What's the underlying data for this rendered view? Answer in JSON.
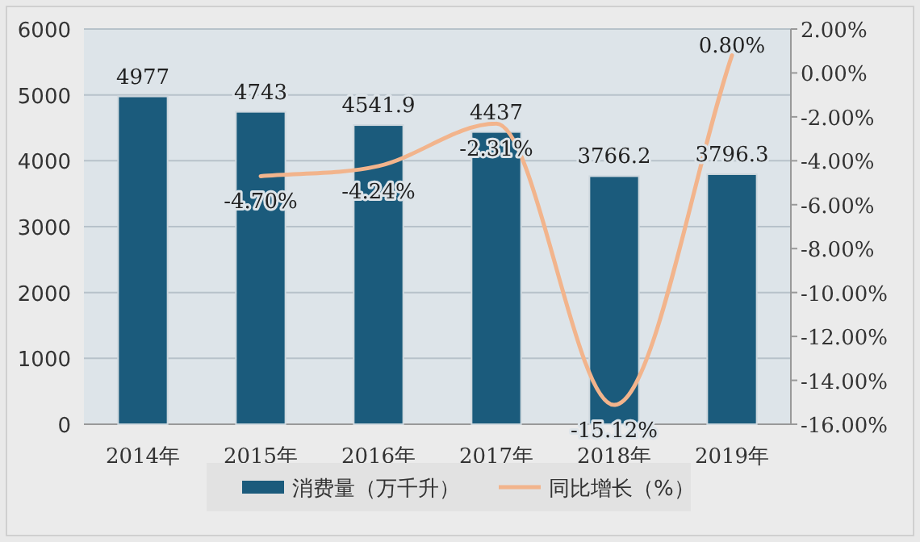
{
  "chart_data": {
    "type": "bar",
    "categories": [
      "2014年",
      "2015年",
      "2016年",
      "2017年",
      "2018年",
      "2019年"
    ],
    "series": [
      {
        "name": "消费量（万千升）",
        "color": "#1b5b7c",
        "values": [
          4977,
          4743,
          4541.9,
          4437,
          3766.2,
          3796.3
        ],
        "data_labels": true
      },
      {
        "name": "同比增长（%）",
        "type": "line",
        "axis": "y2",
        "color": "#f2b48c",
        "values": [
          null,
          -4.7,
          -4.24,
          -2.31,
          -15.12,
          0.8
        ],
        "value_labels": [
          null,
          "-4.70%",
          "-4.24%",
          "-2.31%",
          "-15.12%",
          "0.80%"
        ],
        "marker": "none",
        "line_style": "solid"
      }
    ],
    "ylim": [
      0,
      6000
    ],
    "yticks": [
      0,
      1000,
      2000,
      3000,
      4000,
      5000,
      6000
    ],
    "y2lim": [
      -16,
      2
    ],
    "y2ticks": [
      {
        "value": 2,
        "label": "2.00%"
      },
      {
        "value": 0,
        "label": "0.00%"
      },
      {
        "value": -2,
        "label": "-2.00%"
      },
      {
        "value": -4,
        "label": "-4.00%"
      },
      {
        "value": -6,
        "label": "-6.00%"
      },
      {
        "value": -8,
        "label": "-8.00%"
      },
      {
        "value": -10,
        "label": "-10.00%"
      },
      {
        "value": -12,
        "label": "-12.00%"
      },
      {
        "value": -14,
        "label": "-14.00%"
      },
      {
        "value": -16,
        "label": "-16.00%"
      }
    ],
    "grid": "y",
    "legend": "bottom"
  }
}
